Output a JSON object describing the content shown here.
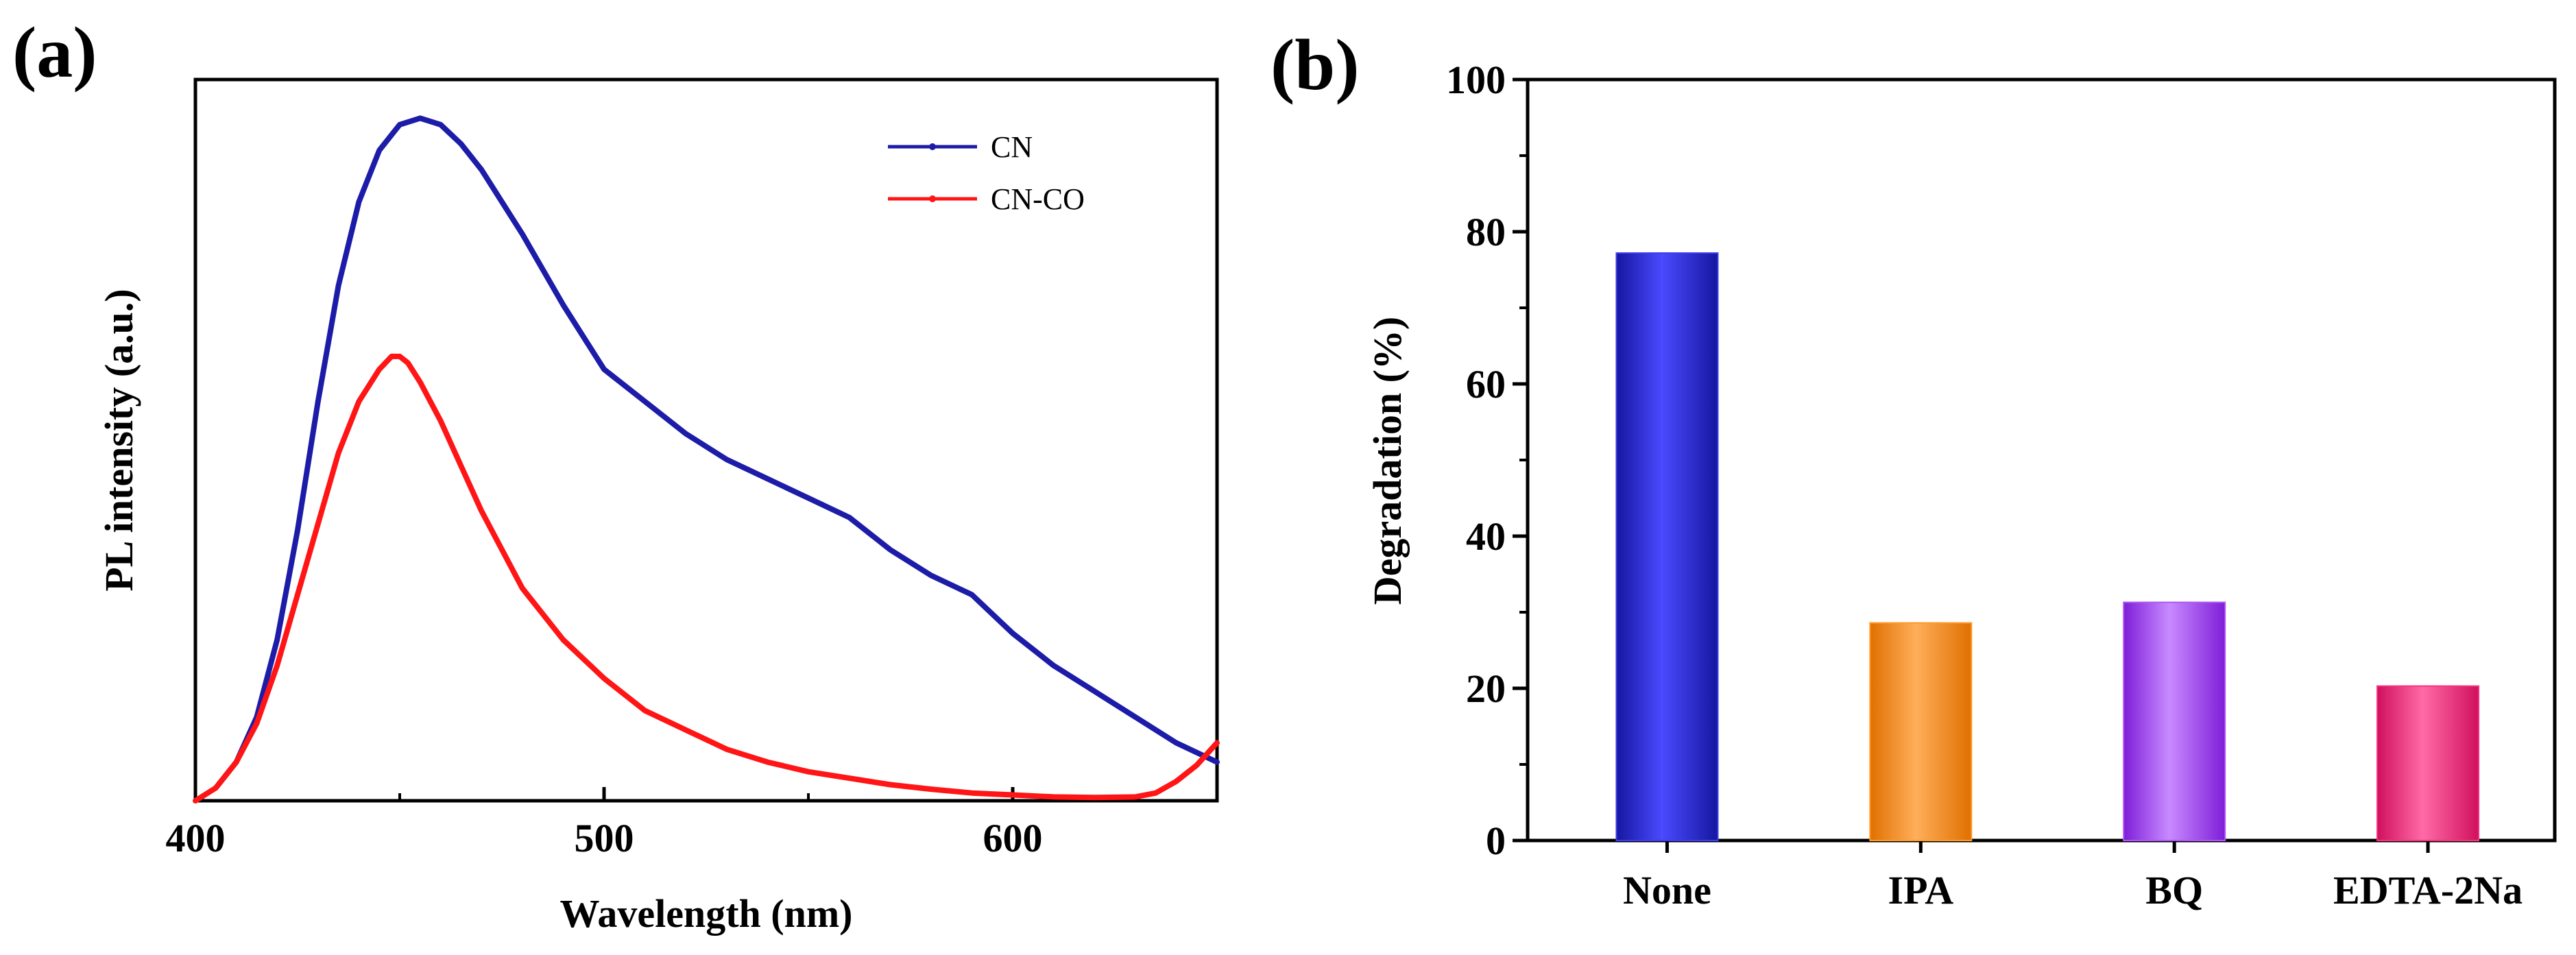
{
  "panel_labels": [
    "(a)",
    "(b)"
  ],
  "colors": {
    "panel_label": "#e00000",
    "cn": "#1c1ca8",
    "cn_co": "#ff1515"
  },
  "chart_data": [
    {
      "type": "line",
      "title": "",
      "xlabel": "Wavelength (nm)",
      "ylabel": "PL intensity (a.u.)",
      "xlim": [
        400,
        650
      ],
      "ylim": [
        0,
        1.12
      ],
      "xticks": [
        400,
        500,
        600
      ],
      "yticks": [],
      "legend": {
        "placement": "top-right"
      },
      "series": [
        {
          "name": "CN",
          "color": "#1c1ca8",
          "x": [
            405,
            410,
            415,
            420,
            425,
            430,
            435,
            440,
            445,
            450,
            455,
            460,
            465,
            470,
            480,
            490,
            500,
            510,
            520,
            530,
            540,
            550,
            560,
            570,
            580,
            590,
            600,
            610,
            620,
            630,
            640,
            650
          ],
          "y": [
            0.02,
            0.06,
            0.13,
            0.25,
            0.42,
            0.62,
            0.8,
            0.93,
            1.01,
            1.05,
            1.06,
            1.05,
            1.02,
            0.98,
            0.88,
            0.77,
            0.67,
            0.62,
            0.57,
            0.53,
            0.5,
            0.47,
            0.44,
            0.39,
            0.35,
            0.32,
            0.26,
            0.21,
            0.17,
            0.13,
            0.09,
            0.06
          ]
        },
        {
          "name": "CN-CO",
          "color": "#ff1515",
          "x": [
            400,
            405,
            410,
            415,
            420,
            425,
            430,
            435,
            440,
            445,
            448,
            450,
            452,
            455,
            460,
            465,
            470,
            480,
            490,
            500,
            510,
            520,
            530,
            540,
            550,
            560,
            570,
            580,
            590,
            600,
            610,
            620,
            630,
            635,
            640,
            645,
            650
          ],
          "y": [
            0.0,
            0.02,
            0.06,
            0.12,
            0.21,
            0.32,
            0.43,
            0.54,
            0.62,
            0.67,
            0.69,
            0.69,
            0.68,
            0.65,
            0.59,
            0.52,
            0.45,
            0.33,
            0.25,
            0.19,
            0.14,
            0.11,
            0.08,
            0.06,
            0.045,
            0.035,
            0.025,
            0.018,
            0.012,
            0.009,
            0.006,
            0.005,
            0.006,
            0.012,
            0.03,
            0.055,
            0.09
          ]
        }
      ]
    },
    {
      "type": "bar",
      "title": "",
      "xlabel": "",
      "ylabel": "Degradation (%)",
      "ylim": [
        0,
        100
      ],
      "yticks": [
        0,
        20,
        40,
        60,
        80,
        100
      ],
      "categories": [
        "None",
        "IPA",
        "BQ",
        "EDTA-2Na"
      ],
      "values": [
        77.2,
        28.6,
        31.3,
        20.3
      ],
      "bar_colors": [
        "#3c3cf0",
        "#ff9a2a",
        "#b055f5",
        "#f5337f"
      ]
    }
  ]
}
